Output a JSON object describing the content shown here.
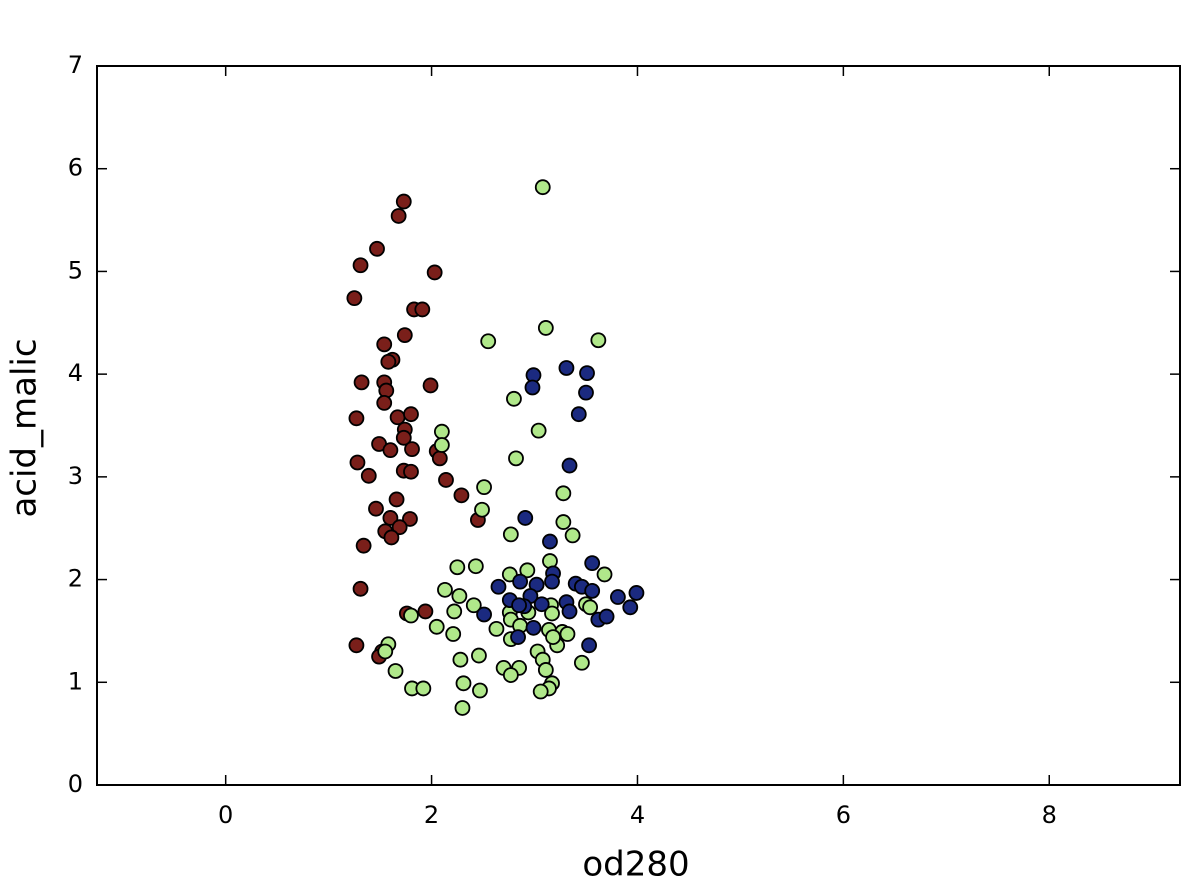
{
  "chart_data": {
    "type": "scatter",
    "x_label": "od280",
    "y_label": "acid_malic",
    "xlim": [
      -1.25,
      9.27
    ],
    "ylim": [
      0,
      7
    ],
    "xticks": [
      0,
      2,
      4,
      6,
      8
    ],
    "yticks": [
      0,
      1,
      2,
      3,
      4,
      5,
      6,
      7
    ],
    "series": [
      {
        "color": "#7a1f1a",
        "x": [
          1.25,
          1.31,
          1.47,
          1.73,
          1.68,
          2.03,
          1.83,
          1.91,
          1.74,
          1.54,
          1.62,
          1.58,
          1.32,
          1.54,
          1.56,
          1.99,
          1.54,
          1.27,
          1.67,
          1.8,
          1.74,
          1.73,
          1.49,
          1.6,
          1.81,
          2.05,
          2.08,
          1.28,
          1.39,
          1.73,
          1.8,
          2.14,
          2.29,
          1.66,
          1.46,
          1.79,
          1.6,
          1.69,
          1.55,
          1.61,
          2.45,
          1.34,
          1.31,
          1.76,
          1.94,
          1.27,
          1.52,
          1.49
        ],
        "values": [
          4.74,
          5.06,
          5.22,
          5.68,
          5.54,
          4.99,
          4.63,
          4.63,
          4.38,
          4.29,
          4.14,
          4.12,
          3.92,
          3.92,
          3.84,
          3.89,
          3.72,
          3.57,
          3.58,
          3.61,
          3.46,
          3.38,
          3.32,
          3.26,
          3.27,
          3.25,
          3.18,
          3.14,
          3.01,
          3.06,
          3.05,
          2.97,
          2.82,
          2.78,
          2.69,
          2.59,
          2.6,
          2.51,
          2.47,
          2.41,
          2.58,
          2.33,
          1.91,
          1.67,
          1.69,
          1.36,
          1.3,
          1.25
        ]
      },
      {
        "color": "#b0e88a",
        "x": [
          3.08,
          3.11,
          2.55,
          3.62,
          2.8,
          2.1,
          3.04,
          2.1,
          2.82,
          2.51,
          3.28,
          2.49,
          3.28,
          3.37,
          2.77,
          3.15,
          2.25,
          2.43,
          3.68,
          2.76,
          2.93,
          2.13,
          2.27,
          2.41,
          2.22,
          1.8,
          2.05,
          2.21,
          2.63,
          2.76,
          2.94,
          2.77,
          2.86,
          3.16,
          3.17,
          3.14,
          3.27,
          3.32,
          3.5,
          3.54,
          2.77,
          3.22,
          3.18,
          1.58,
          1.55,
          1.65,
          2.46,
          2.28,
          3.03,
          3.08,
          3.11,
          2.7,
          2.85,
          2.77,
          3.46,
          3.17,
          3.14,
          3.06,
          2.31,
          2.47,
          1.81,
          1.92,
          2.3
        ],
        "values": [
          5.82,
          4.45,
          4.32,
          4.33,
          3.76,
          3.44,
          3.45,
          3.31,
          3.18,
          2.9,
          2.84,
          2.68,
          2.56,
          2.43,
          2.44,
          2.18,
          2.12,
          2.13,
          2.05,
          2.05,
          2.09,
          1.9,
          1.84,
          1.75,
          1.69,
          1.65,
          1.54,
          1.47,
          1.52,
          1.68,
          1.68,
          1.61,
          1.55,
          1.75,
          1.67,
          1.51,
          1.49,
          1.47,
          1.76,
          1.73,
          1.42,
          1.36,
          1.44,
          1.37,
          1.3,
          1.11,
          1.26,
          1.22,
          1.3,
          1.22,
          1.12,
          1.14,
          1.14,
          1.07,
          1.19,
          0.99,
          0.94,
          0.91,
          0.99,
          0.92,
          0.94,
          0.94,
          0.75
        ]
      },
      {
        "color": "#1b2a80",
        "x": [
          3.31,
          2.99,
          3.51,
          2.98,
          3.5,
          3.43,
          3.34,
          2.91,
          3.15,
          3.18,
          3.56,
          2.65,
          2.86,
          3.02,
          3.17,
          3.4,
          3.46,
          3.56,
          3.99,
          3.81,
          3.93,
          2.76,
          2.96,
          2.9,
          3.07,
          3.31,
          3.34,
          2.51,
          2.85,
          3.62,
          3.7,
          2.99,
          2.84,
          3.53
        ],
        "values": [
          4.06,
          3.99,
          4.01,
          3.87,
          3.82,
          3.61,
          3.11,
          2.6,
          2.37,
          2.06,
          2.16,
          1.93,
          1.98,
          1.95,
          1.98,
          1.96,
          1.93,
          1.89,
          1.87,
          1.83,
          1.73,
          1.8,
          1.84,
          1.74,
          1.76,
          1.78,
          1.69,
          1.66,
          1.75,
          1.61,
          1.64,
          1.53,
          1.44,
          1.36
        ]
      }
    ]
  }
}
